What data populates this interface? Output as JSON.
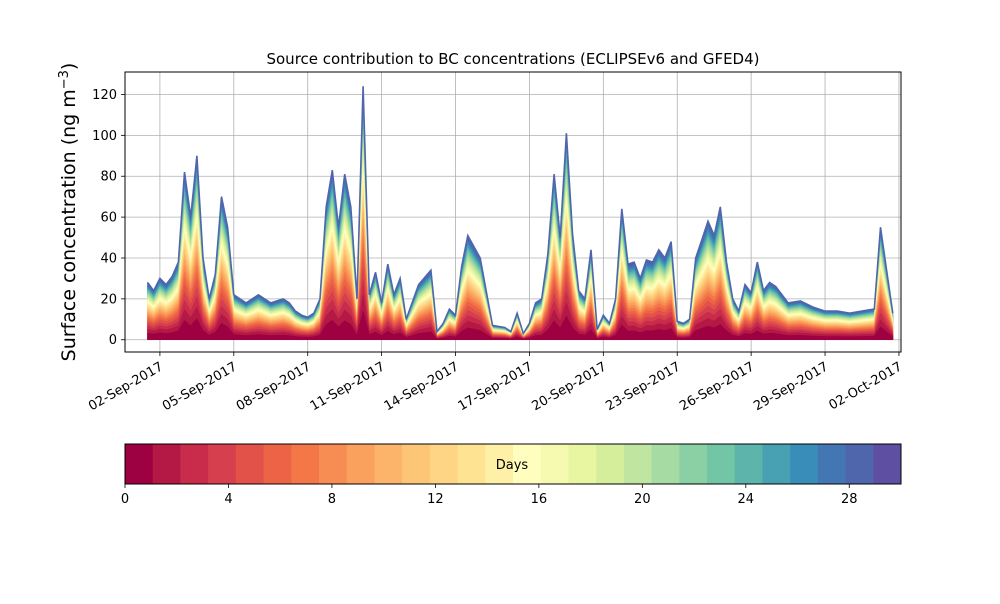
{
  "chart_data": {
    "type": "area",
    "stacked": true,
    "title": "Source contribution to BC concentrations (ECLIPSEv6 and GFED4)",
    "ylabel": "Surface concentration (ng m",
    "ylabel_superscript": "−3",
    "ylabel_suffix": ")",
    "xlabel": "",
    "ylim": [
      -6,
      131
    ],
    "yticks": [
      0,
      20,
      40,
      60,
      80,
      100,
      120
    ],
    "xlim": [
      "2017-08-31T14:00",
      "2017-10-02T02:00"
    ],
    "x_tick_dates": [
      "2017-09-02",
      "2017-09-05",
      "2017-09-08",
      "2017-09-11",
      "2017-09-14",
      "2017-09-17",
      "2017-09-20",
      "2017-09-23",
      "2017-09-26",
      "2017-09-29",
      "2017-10-02"
    ],
    "x_tick_labels": [
      "02-Sep-2017",
      "05-Sep-2017",
      "08-Sep-2017",
      "11-Sep-2017",
      "14-Sep-2017",
      "17-Sep-2017",
      "20-Sep-2017",
      "23-Sep-2017",
      "26-Sep-2017",
      "29-Sep-2017",
      "02-Oct-2017"
    ],
    "grid": true,
    "total_series": {
      "x": [
        "2017-09-01T12:00",
        "2017-09-01T18:00",
        "2017-09-02T00:00",
        "2017-09-02T06:00",
        "2017-09-02T12:00",
        "2017-09-02T18:00",
        "2017-09-03T00:00",
        "2017-09-03T06:00",
        "2017-09-03T12:00",
        "2017-09-03T18:00",
        "2017-09-04T00:00",
        "2017-09-04T06:00",
        "2017-09-04T12:00",
        "2017-09-04T18:00",
        "2017-09-05T00:00",
        "2017-09-05T12:00",
        "2017-09-06T00:00",
        "2017-09-06T12:00",
        "2017-09-07T00:00",
        "2017-09-07T06:00",
        "2017-09-07T12:00",
        "2017-09-07T18:00",
        "2017-09-08T00:00",
        "2017-09-08T06:00",
        "2017-09-08T12:00",
        "2017-09-08T18:00",
        "2017-09-09T00:00",
        "2017-09-09T06:00",
        "2017-09-09T12:00",
        "2017-09-09T18:00",
        "2017-09-10T00:00",
        "2017-09-10T06:00",
        "2017-09-10T12:00",
        "2017-09-10T18:00",
        "2017-09-11T00:00",
        "2017-09-11T06:00",
        "2017-09-11T12:00",
        "2017-09-11T18:00",
        "2017-09-12T00:00",
        "2017-09-12T12:00",
        "2017-09-13T00:00",
        "2017-09-13T06:00",
        "2017-09-13T12:00",
        "2017-09-13T18:00",
        "2017-09-14T00:00",
        "2017-09-14T06:00",
        "2017-09-14T12:00",
        "2017-09-15T00:00",
        "2017-09-15T12:00",
        "2017-09-16T00:00",
        "2017-09-16T06:00",
        "2017-09-16T12:00",
        "2017-09-16T18:00",
        "2017-09-17T00:00",
        "2017-09-17T06:00",
        "2017-09-17T12:00",
        "2017-09-17T18:00",
        "2017-09-18T00:00",
        "2017-09-18T06:00",
        "2017-09-18T12:00",
        "2017-09-18T18:00",
        "2017-09-19T00:00",
        "2017-09-19T06:00",
        "2017-09-19T12:00",
        "2017-09-19T18:00",
        "2017-09-20T00:00",
        "2017-09-20T06:00",
        "2017-09-20T12:00",
        "2017-09-20T18:00",
        "2017-09-21T00:00",
        "2017-09-21T06:00",
        "2017-09-21T12:00",
        "2017-09-21T18:00",
        "2017-09-22T00:00",
        "2017-09-22T06:00",
        "2017-09-22T12:00",
        "2017-09-22T18:00",
        "2017-09-23T00:00",
        "2017-09-23T06:00",
        "2017-09-23T12:00",
        "2017-09-23T18:00",
        "2017-09-24T00:00",
        "2017-09-24T06:00",
        "2017-09-24T12:00",
        "2017-09-24T18:00",
        "2017-09-25T00:00",
        "2017-09-25T06:00",
        "2017-09-25T12:00",
        "2017-09-25T18:00",
        "2017-09-26T00:00",
        "2017-09-26T06:00",
        "2017-09-26T12:00",
        "2017-09-26T18:00",
        "2017-09-27T00:00",
        "2017-09-27T12:00",
        "2017-09-28T00:00",
        "2017-09-28T12:00",
        "2017-09-29T00:00",
        "2017-09-29T12:00",
        "2017-09-30T00:00",
        "2017-09-30T12:00",
        "2017-10-01T00:00",
        "2017-10-01T06:00",
        "2017-10-01T12:00",
        "2017-10-01T18:00"
      ],
      "values": [
        28,
        24,
        30,
        27,
        31,
        38,
        82,
        60,
        90,
        40,
        20,
        32,
        70,
        55,
        22,
        18,
        22,
        18,
        20,
        18,
        14,
        12,
        11,
        13,
        20,
        65,
        83,
        55,
        81,
        65,
        20,
        124,
        22,
        33,
        18,
        37,
        22,
        30,
        10,
        27,
        34,
        4,
        8,
        15,
        12,
        36,
        51,
        40,
        7,
        6,
        4,
        13,
        3,
        8,
        18,
        20,
        42,
        81,
        50,
        101,
        52,
        24,
        20,
        44,
        5,
        12,
        8,
        20,
        64,
        37,
        38,
        30,
        39,
        38,
        44,
        40,
        48,
        9,
        8,
        10,
        40,
        49,
        58,
        51,
        65,
        38,
        20,
        14,
        27,
        23,
        38,
        24,
        28,
        26,
        18,
        19,
        16,
        14,
        14,
        13,
        14,
        15,
        55,
        34,
        13
      ]
    },
    "days_bins": 30,
    "colorbar": {
      "label": "Days",
      "range": [
        0,
        30
      ],
      "ticks": [
        0,
        4,
        8,
        12,
        16,
        20,
        24,
        28
      ],
      "colors": [
        "#9e0142",
        "#b41946",
        "#c92c4a",
        "#d6404e",
        "#e25249",
        "#ec6346",
        "#f47748",
        "#f78d53",
        "#faa15d",
        "#fbb469",
        "#fdc676",
        "#fdd584",
        "#fee393",
        "#fff0a7",
        "#fffebe",
        "#f5fab0",
        "#e8f6a1",
        "#d5ee9b",
        "#bfe5a0",
        "#a7dba4",
        "#8bd0a4",
        "#72c6a5",
        "#5cb4aa",
        "#47a1b3",
        "#388db9",
        "#4377b3",
        "#4f66ad",
        "#5e4fa2"
      ]
    }
  }
}
